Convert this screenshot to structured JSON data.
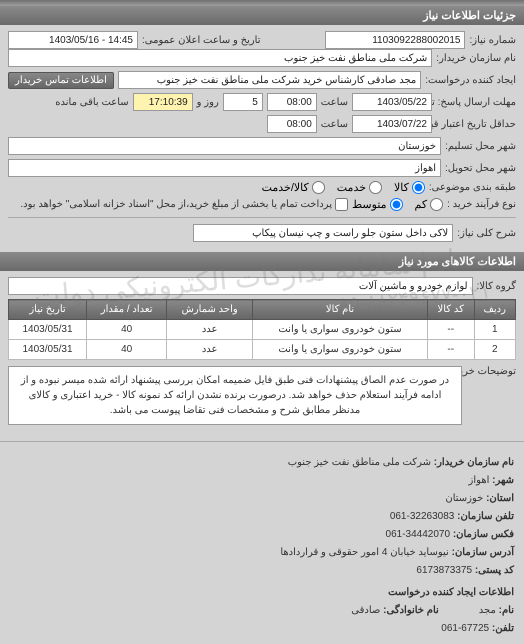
{
  "header": {
    "title": "جزئیات اطلاعات نیاز"
  },
  "form": {
    "request_number_label": "شماره نیاز:",
    "request_number": "1103092288002015",
    "announce_label": "تاریخ و ساعت اعلان عمومی:",
    "announce_value": "14:45 - 1403/05/16",
    "buyer_label": "نام سازمان خریدار:",
    "buyer_value": "شرکت ملی مناطق نفت خیز جنوب",
    "creator_label": "ایجاد کننده درخواست:",
    "creator_value": "مجد صادقی  کارشناس خرید  شرکت ملی مناطق نفت خیز جنوب",
    "contact_btn": "اطلاعات تماس خریدار",
    "response_deadline_label": "مهلت ارسال پاسخ: تا تاریخ:",
    "response_date": "1403/05/22",
    "time_label": "ساعت",
    "response_time": "08:00",
    "days_label": "روز و",
    "days_value": "5",
    "remain_label": "ساعت باقی مانده",
    "remain_value": "17:10:39",
    "validity_label": "حداقل تاریخ اعتبار قیمت: تا تاریخ:",
    "validity_date": "1403/07/22",
    "validity_time": "08:00",
    "city_label": "شهر محل تسلیم:",
    "city_value": "خوزستان",
    "delivery_city_label": "شهر محل تحویل:",
    "delivery_city_value": "اهواز",
    "classification_label": "طبقه بندی موضوعی:",
    "radio_goods": "کالا",
    "radio_service": "خدمت",
    "radio_goods_service": "کالا/خدمت",
    "process_label": "نوع فرآیند خرید :",
    "radio_low": "کم",
    "radio_medium": "متوسط",
    "process_note": "پرداخت تمام یا بخشی از مبلغ خرید،از محل \"اسناد خزانه اسلامی\" خواهد بود.",
    "need_title_label": "شرح کلی نیاز:",
    "need_title": "لاکی داخل ستون جلو راست و چپ نیسان پیکاپ"
  },
  "goods_section": {
    "title": "اطلاعات کالاهای مورد نیاز",
    "group_label": "گروه کالا:",
    "group_value": "لوازم خودرو و ماشین آلات"
  },
  "table": {
    "headers": [
      "ردیف",
      "کد کالا",
      "نام کالا",
      "واحد شمارش",
      "تعداد / مقدار",
      "تاریخ نیاز"
    ],
    "rows": [
      [
        "1",
        "--",
        "ستون خودروی سواری یا وانت",
        "عدد",
        "40",
        "1403/05/31"
      ],
      [
        "2",
        "--",
        "ستون خودروی سواری یا وانت",
        "عدد",
        "40",
        "1403/05/31"
      ]
    ]
  },
  "description": {
    "label": "توضیحات خریدار:",
    "text": "در صورت عدم الصاق پیشنهادات فنی طبق فایل ضمیمه امکان بررسی پیشنهاد ارائه شده میسر نبوده و از ادامه فرآیند استعلام حذف خواهد شد. درصورت برنده نشدن ارائه کد نمونه کالا - خرید اعتباری و کالای مدنظر مطابق شرح و مشخصات فنی تقاضا پیوست می باشد."
  },
  "footer": {
    "org_label": "نام سازمان خریدار:",
    "org_value": "شرکت ملی مناطق نفت خیز جنوب",
    "city_label": "شهر:",
    "city_value": "اهواز",
    "province_label": "استان:",
    "province_value": "خوزستان",
    "phone_label": "تلفن سازمان:",
    "phone_value": "32263083-061",
    "fax_label": "فکس سازمان:",
    "fax_value": "34442070-061",
    "address_label": "آدرس سازمان:",
    "address_value": "نیوساید خیابان 4 امور حقوقی و قراردادها",
    "postal_label": "کد پستی:",
    "postal_value": "6173873375",
    "creator_info_title": "اطلاعات ایجاد کننده درخواست",
    "name_label": "نام:",
    "name_value": "مجد",
    "family_label": "نام خانوادگی:",
    "family_value": "صادقی",
    "tel_label": "تلفن:",
    "tel_value": "67725-061"
  },
  "watermark": "ستاد | سامانه تدارکات الکترونیکی دولت",
  "watermark_phone": "٠٢١-٨٨٢۴٩۶٧٧-٨۵",
  "colors": {
    "header_bg_start": "#8a8a8a",
    "header_bg_end": "#6a6a6a",
    "body_bg": "#d4d4d4",
    "input_bg": "#ffffff",
    "yellow_bg": "#fff3b0"
  }
}
